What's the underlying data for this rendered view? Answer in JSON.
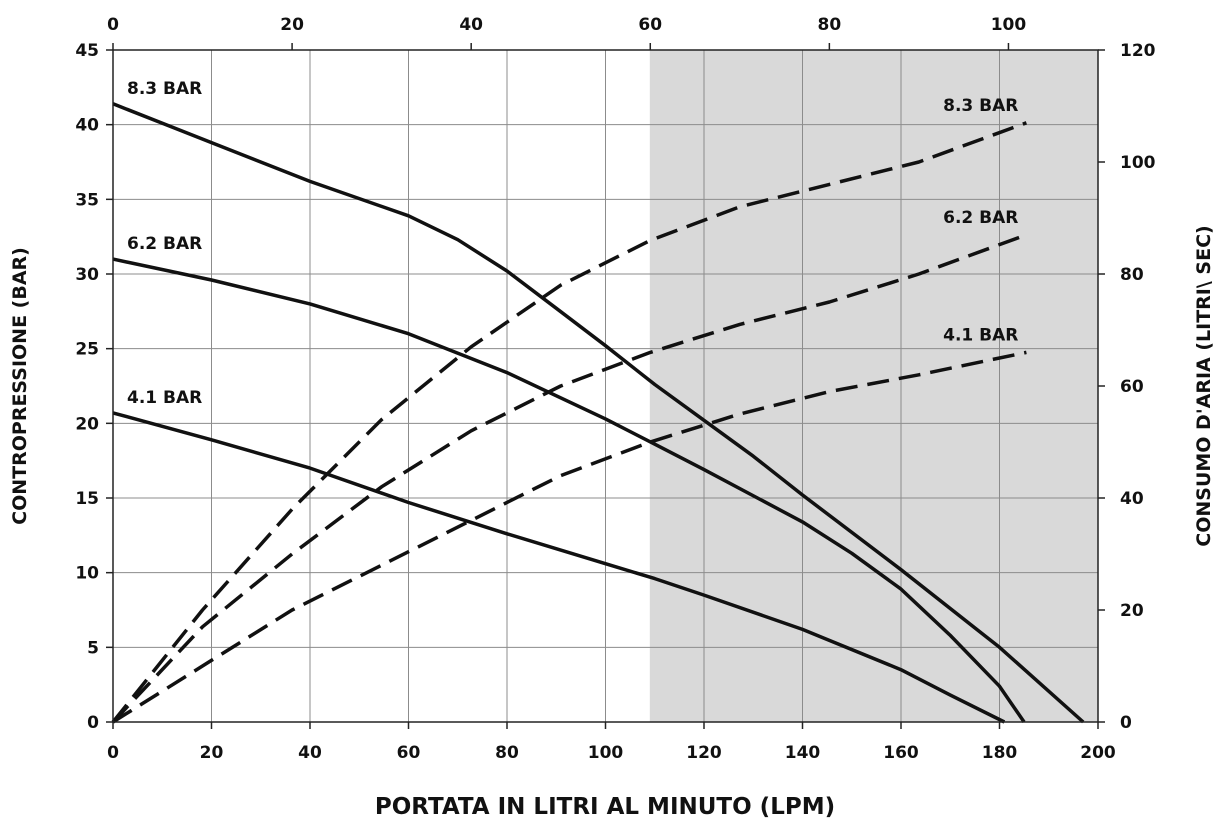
{
  "chart_data": {
    "type": "line",
    "title": "",
    "xlabel": "PORTATA IN LITRI AL MINUTO (LPM)",
    "ylabel": "CONTROPRESSIONE (BAR)",
    "y2label": "CONSUMO D'ARIA (LITRI\\ SEC)",
    "xlim": [
      0,
      200
    ],
    "ylim": [
      0,
      45
    ],
    "x2lim": [
      0,
      110
    ],
    "y2lim": [
      0,
      120
    ],
    "x_ticks": [
      0,
      20,
      40,
      60,
      80,
      100,
      120,
      140,
      160,
      180,
      200
    ],
    "y_ticks": [
      0,
      5,
      10,
      15,
      20,
      25,
      30,
      35,
      40,
      45
    ],
    "x2_ticks": [
      0,
      20,
      40,
      60,
      80,
      100
    ],
    "y2_ticks": [
      0,
      20,
      40,
      60,
      80,
      100,
      120
    ],
    "grid": true,
    "shaded_region": {
      "x_from": 109,
      "x_to": 200,
      "color": "#d9d9d9"
    },
    "series": [
      {
        "name": "8.3 BAR",
        "kind": "pressure",
        "style": "solid",
        "points": [
          [
            0,
            41.4
          ],
          [
            20,
            38.8
          ],
          [
            40,
            36.2
          ],
          [
            60,
            33.9
          ],
          [
            70,
            32.3
          ],
          [
            80,
            30.2
          ],
          [
            90,
            27.7
          ],
          [
            100,
            25.2
          ],
          [
            110,
            22.6
          ],
          [
            120,
            20.2
          ],
          [
            130,
            17.8
          ],
          [
            140,
            15.2
          ],
          [
            160,
            10.2
          ],
          [
            180,
            5.0
          ],
          [
            197,
            0
          ]
        ]
      },
      {
        "name": "6.2 BAR",
        "kind": "pressure",
        "style": "solid",
        "points": [
          [
            0,
            31.0
          ],
          [
            20,
            29.6
          ],
          [
            40,
            28.0
          ],
          [
            60,
            26.0
          ],
          [
            80,
            23.4
          ],
          [
            100,
            20.3
          ],
          [
            110,
            18.6
          ],
          [
            120,
            16.9
          ],
          [
            140,
            13.4
          ],
          [
            150,
            11.3
          ],
          [
            160,
            8.9
          ],
          [
            170,
            5.8
          ],
          [
            180,
            2.4
          ],
          [
            185,
            0
          ]
        ]
      },
      {
        "name": "4.1 BAR",
        "kind": "pressure",
        "style": "solid",
        "points": [
          [
            0,
            20.7
          ],
          [
            20,
            18.9
          ],
          [
            40,
            17.0
          ],
          [
            60,
            14.7
          ],
          [
            80,
            12.6
          ],
          [
            100,
            10.6
          ],
          [
            110,
            9.6
          ],
          [
            120,
            8.5
          ],
          [
            140,
            6.2
          ],
          [
            160,
            3.5
          ],
          [
            170,
            1.8
          ],
          [
            181,
            0
          ]
        ]
      },
      {
        "name": "8.3 BAR",
        "kind": "air",
        "style": "dashed",
        "points": [
          [
            0,
            0
          ],
          [
            10,
            20
          ],
          [
            20,
            38
          ],
          [
            30,
            54
          ],
          [
            40,
            67
          ],
          [
            50,
            78
          ],
          [
            60,
            86
          ],
          [
            70,
            92
          ],
          [
            80,
            96
          ],
          [
            90,
            100
          ],
          [
            102,
            107
          ]
        ]
      },
      {
        "name": "6.2 BAR",
        "kind": "air",
        "style": "dashed",
        "points": [
          [
            0,
            0
          ],
          [
            10,
            17
          ],
          [
            20,
            30
          ],
          [
            30,
            42
          ],
          [
            40,
            52
          ],
          [
            50,
            60
          ],
          [
            60,
            66
          ],
          [
            70,
            71
          ],
          [
            80,
            75
          ],
          [
            90,
            80
          ],
          [
            102,
            87
          ]
        ]
      },
      {
        "name": "4.1 BAR",
        "kind": "air",
        "style": "dashed",
        "points": [
          [
            0,
            0
          ],
          [
            10,
            10
          ],
          [
            20,
            20
          ],
          [
            30,
            28
          ],
          [
            40,
            36
          ],
          [
            50,
            44
          ],
          [
            60,
            50
          ],
          [
            70,
            55
          ],
          [
            80,
            59
          ],
          [
            90,
            62
          ],
          [
            102,
            66
          ]
        ]
      }
    ]
  }
}
